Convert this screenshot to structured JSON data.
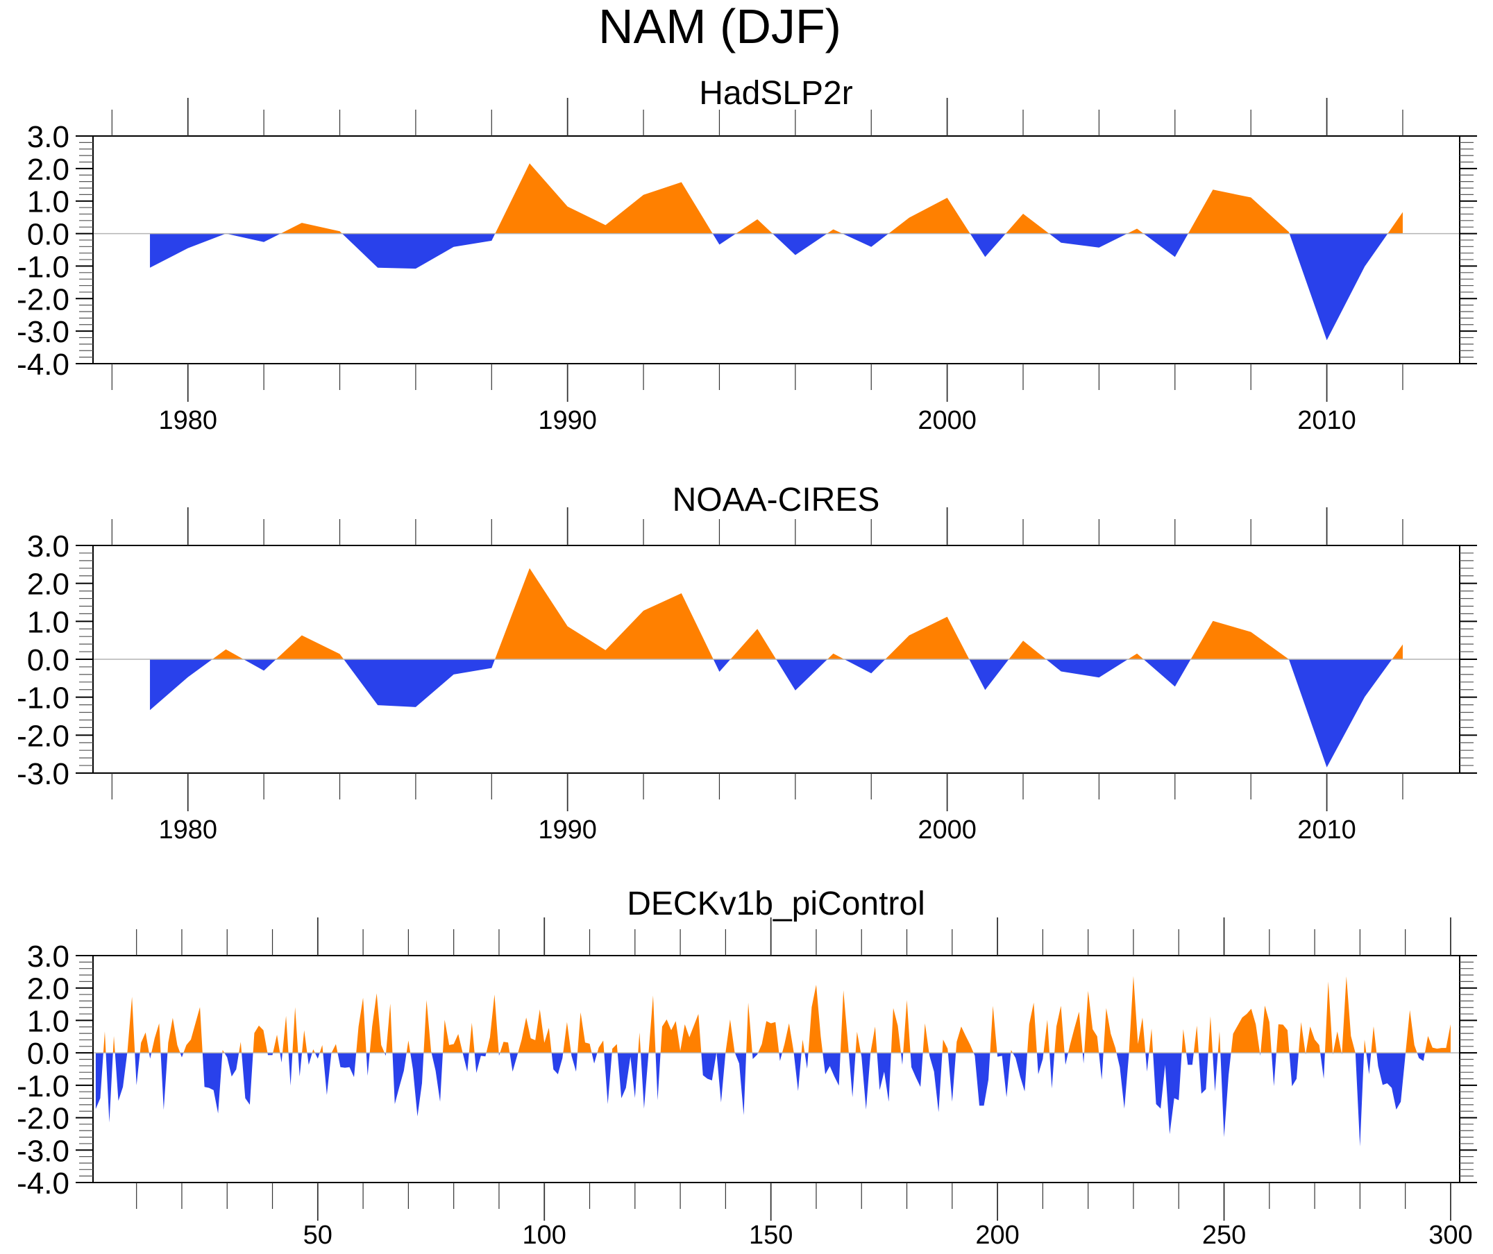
{
  "figure_title": "NAM (DJF)",
  "colors": {
    "positive": "#FF8000",
    "negative": "#2941EB",
    "axis": "#000000",
    "zero_line": "#B4B4B4"
  },
  "chart_data": [
    {
      "type": "area",
      "title": "HadSLP2r",
      "xlabel": "",
      "ylabel": "",
      "xlim": [
        1977.5,
        2013.5
      ],
      "ylim": [
        -4.0,
        3.0
      ],
      "x_ticks": [
        1980,
        1990,
        2000,
        2010
      ],
      "x_tick_labels": [
        "1980",
        "1990",
        "2000",
        "2010"
      ],
      "y_ticks": [
        3.0,
        2.0,
        1.0,
        0.0,
        -1.0,
        -2.0,
        -3.0,
        -4.0
      ],
      "y_tick_labels": [
        "3.0",
        "2.0",
        "1.0",
        "0.0",
        "-1.0",
        "-2.0",
        "-3.0",
        "-4.0"
      ],
      "x": [
        1979,
        1980,
        1981,
        1982,
        1983,
        1984,
        1985,
        1986,
        1987,
        1988,
        1989,
        1990,
        1991,
        1992,
        1993,
        1994,
        1995,
        1996,
        1997,
        1998,
        1999,
        2000,
        2001,
        2002,
        2003,
        2004,
        2005,
        2006,
        2007,
        2008,
        2009,
        2010,
        2011,
        2012
      ],
      "values": [
        -1.05,
        -0.45,
        0.0,
        -0.26,
        0.33,
        0.07,
        -1.05,
        -1.08,
        -0.41,
        -0.22,
        2.16,
        0.83,
        0.26,
        1.19,
        1.58,
        -0.34,
        0.44,
        -0.66,
        0.13,
        -0.41,
        0.49,
        1.1,
        -0.72,
        0.61,
        -0.28,
        -0.43,
        0.15,
        -0.72,
        1.35,
        1.11,
        0.05,
        -3.28,
        -1.01,
        0.66
      ],
      "grid": false
    },
    {
      "type": "area",
      "title": "NOAA-CIRES",
      "xlabel": "",
      "ylabel": "",
      "xlim": [
        1977.5,
        2013.5
      ],
      "ylim": [
        -3.0,
        3.0
      ],
      "x_ticks": [
        1980,
        1990,
        2000,
        2010
      ],
      "x_tick_labels": [
        "1980",
        "1990",
        "2000",
        "2010"
      ],
      "y_ticks": [
        3.0,
        2.0,
        1.0,
        0.0,
        -1.0,
        -2.0,
        -3.0
      ],
      "y_tick_labels": [
        "3.0",
        "2.0",
        "1.0",
        "0.0",
        "-1.0",
        "-2.0",
        "-3.0"
      ],
      "x": [
        1979,
        1980,
        1981,
        1982,
        1983,
        1984,
        1985,
        1986,
        1987,
        1988,
        1989,
        1990,
        1991,
        1992,
        1993,
        1994,
        1995,
        1996,
        1997,
        1998,
        1999,
        2000,
        2001,
        2002,
        2003,
        2004,
        2005,
        2006,
        2007,
        2008,
        2009,
        2010,
        2011,
        2012
      ],
      "values": [
        -1.34,
        -0.47,
        0.26,
        -0.3,
        0.63,
        0.14,
        -1.21,
        -1.26,
        -0.4,
        -0.23,
        2.4,
        0.87,
        0.24,
        1.28,
        1.74,
        -0.33,
        0.8,
        -0.82,
        0.15,
        -0.37,
        0.63,
        1.12,
        -0.81,
        0.49,
        -0.32,
        -0.48,
        0.15,
        -0.72,
        1.01,
        0.72,
        0.0,
        -2.85,
        -0.99,
        0.39
      ],
      "grid": false
    },
    {
      "type": "area",
      "title": "DECKv1b_piControl",
      "xlabel": "",
      "ylabel": "",
      "xlim": [
        0.4,
        302
      ],
      "ylim": [
        -4.0,
        3.0
      ],
      "x_ticks": [
        50,
        100,
        150,
        200,
        250,
        300
      ],
      "x_tick_labels": [
        "50",
        "100",
        "150",
        "200",
        "250",
        "300"
      ],
      "y_ticks": [
        3.0,
        2.0,
        1.0,
        0.0,
        -1.0,
        -2.0,
        -3.0,
        -4.0
      ],
      "y_tick_labels": [
        "3.0",
        "2.0",
        "1.0",
        "0.0",
        "-1.0",
        "-2.0",
        "-3.0",
        "-4.0"
      ],
      "x_start": 1,
      "values": [
        -1.73,
        -1.4,
        0.66,
        -2.15,
        0.52,
        -1.48,
        -1.05,
        0.05,
        1.73,
        -1.0,
        0.31,
        0.63,
        -0.18,
        0.45,
        0.91,
        -1.76,
        0.31,
        1.08,
        0.24,
        -0.14,
        0.24,
        0.41,
        0.91,
        1.41,
        -1.05,
        -1.08,
        -1.15,
        -1.87,
        0.09,
        -0.14,
        -0.73,
        -0.51,
        0.34,
        -1.4,
        -1.6,
        0.61,
        0.84,
        0.7,
        -0.07,
        -0.07,
        0.56,
        -0.3,
        1.14,
        -1.01,
        1.41,
        -0.73,
        0.7,
        -0.37,
        0.11,
        -0.18,
        0.24,
        -1.3,
        -0.01,
        0.27,
        -0.44,
        -0.46,
        -0.44,
        -0.75,
        0.81,
        1.7,
        -0.71,
        0.81,
        1.84,
        0.24,
        -0.09,
        1.52,
        -1.58,
        -1.05,
        -0.55,
        0.38,
        -0.51,
        -1.96,
        -0.94,
        1.63,
        0.06,
        -0.55,
        -1.51,
        1.02,
        0.24,
        0.27,
        0.58,
        -0.01,
        -0.58,
        0.93,
        -0.62,
        -0.09,
        -0.11,
        0.48,
        1.8,
        -0.09,
        0.34,
        0.32,
        -0.58,
        -0.09,
        0.41,
        1.09,
        0.45,
        0.39,
        1.34,
        0.31,
        0.77,
        -0.51,
        -0.66,
        -0.16,
        0.95,
        -0.09,
        -0.58,
        1.25,
        0.32,
        0.28,
        -0.33,
        0.16,
        0.38,
        -1.58,
        0.13,
        0.27,
        -1.4,
        -1.08,
        -0.12,
        -1.39,
        0.63,
        -1.72,
        -0.01,
        1.77,
        -1.46,
        0.81,
        1.03,
        0.7,
        0.98,
        0.06,
        0.88,
        0.48,
        0.84,
        1.2,
        -0.69,
        -0.8,
        -0.85,
        0.02,
        -1.53,
        0.02,
        1.03,
        0.02,
        -0.33,
        -1.92,
        1.55,
        -0.19,
        -0.05,
        0.27,
        0.98,
        0.91,
        0.95,
        -0.25,
        0.27,
        0.91,
        0.06,
        -1.18,
        0.41,
        -0.49,
        1.41,
        2.1,
        0.5,
        -0.66,
        -0.41,
        -0.73,
        -1.01,
        1.93,
        0.31,
        -1.37,
        0.65,
        -0.12,
        -1.75,
        0.02,
        0.81,
        -1.15,
        -0.58,
        -1.51,
        1.38,
        0.84,
        -0.37,
        1.63,
        -0.44,
        -0.76,
        -1.05,
        0.91,
        -0.09,
        -0.58,
        -1.83,
        0.41,
        0.13,
        -1.51,
        0.34,
        0.81,
        0.52,
        0.24,
        -0.09,
        -1.63,
        -1.63,
        -0.83,
        1.45,
        -0.12,
        -0.09,
        -1.37,
        0.09,
        -0.16,
        -0.73,
        -1.19,
        0.88,
        1.55,
        -0.66,
        -0.19,
        1.02,
        -1.1,
        0.81,
        1.45,
        -0.37,
        0.24,
        0.77,
        1.27,
        -0.33,
        1.91,
        0.73,
        0.51,
        -0.83,
        1.38,
        0.59,
        0.16,
        -0.44,
        -1.72,
        -0.05,
        2.37,
        0.27,
        1.09,
        -0.58,
        0.75,
        -1.58,
        -1.72,
        -0.37,
        -2.51,
        -1.4,
        -1.46,
        0.73,
        -0.37,
        -0.37,
        0.84,
        -1.26,
        -1.12,
        1.13,
        -1.19,
        0.66,
        -2.6,
        -0.69,
        0.59,
        0.84,
        1.09,
        1.2,
        1.36,
        0.88,
        -0.09,
        1.46,
        0.95,
        -1.03,
        0.88,
        0.87,
        0.7,
        -1.03,
        -0.8,
        0.95,
        -0.05,
        0.81,
        0.41,
        0.24,
        -0.8,
        2.2,
        -0.05,
        0.66,
        -0.05,
        2.36,
        0.52,
        -0.01,
        -2.89,
        0.41,
        -0.66,
        0.82,
        -0.41,
        -0.99,
        -0.94,
        -1.08,
        -1.75,
        -1.51,
        -0.09,
        1.32,
        0.24,
        -0.16,
        -0.25,
        0.52,
        0.16,
        0.13,
        0.15,
        0.15,
        0.88
      ],
      "grid": false
    }
  ]
}
